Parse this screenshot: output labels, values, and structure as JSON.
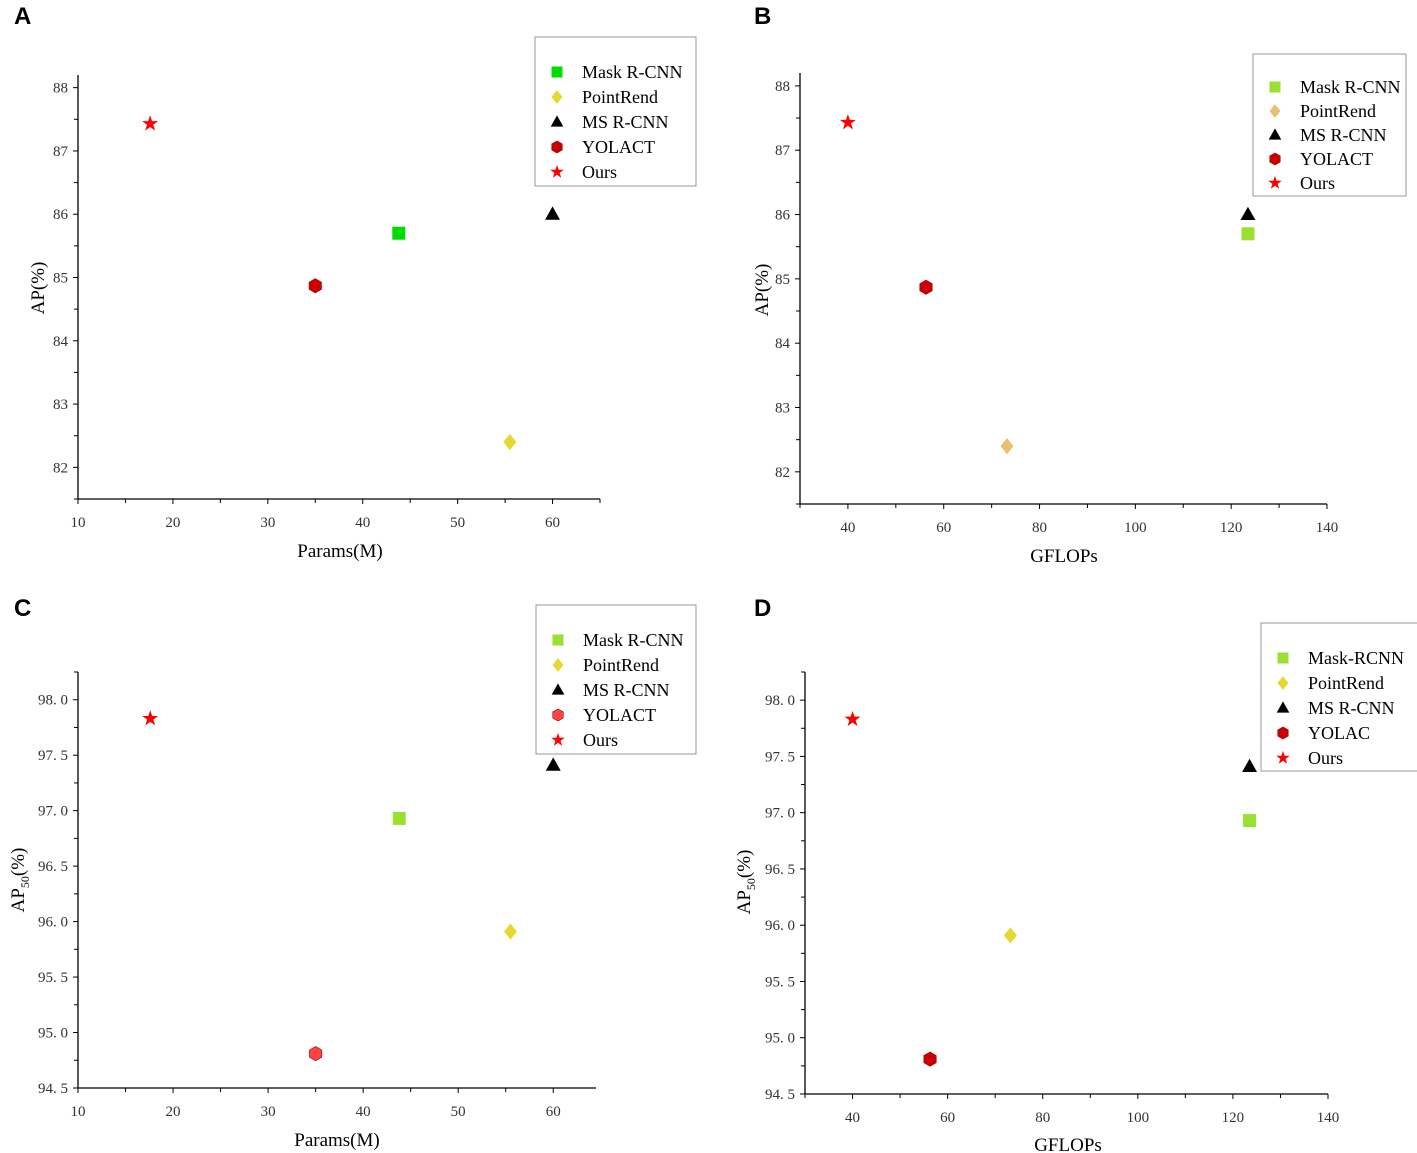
{
  "chart_data": [
    {
      "panel": "A",
      "type": "scatter",
      "xlabel": "Params(M)",
      "ylabel": "AP(%)",
      "xlim": [
        10,
        65
      ],
      "ylim": [
        81.5,
        88.2
      ],
      "xticks": [
        "10",
        "20",
        "30",
        "40",
        "50",
        "60"
      ],
      "xtick_values": [
        10,
        20,
        30,
        40,
        50,
        60
      ],
      "yticks": [
        "82",
        "83",
        "84",
        "85",
        "86",
        "87",
        "88"
      ],
      "ytick_values": [
        82,
        83,
        84,
        85,
        86,
        87,
        88
      ],
      "legend_position": "top-right",
      "series": [
        {
          "name": "Mask R-CNN",
          "marker": "square",
          "color": "#00dd00",
          "x": 43.8,
          "y": 85.7
        },
        {
          "name": "PointRend",
          "marker": "diamond",
          "color": "#e6d830",
          "x": 55.5,
          "y": 82.4
        },
        {
          "name": "MS R-CNN",
          "marker": "triangle",
          "color": "#000000",
          "x": 60,
          "y": 86.0
        },
        {
          "name": "YOLACT",
          "marker": "hexagon",
          "color": "#cc0000",
          "x": 35,
          "y": 84.87
        },
        {
          "name": "Ours",
          "marker": "star",
          "color": "#ff0000",
          "x": 17.6,
          "y": 87.43
        }
      ]
    },
    {
      "panel": "B",
      "type": "scatter",
      "xlabel": "GFLOPs",
      "ylabel": "AP(%)",
      "xlim": [
        30,
        140
      ],
      "ylim": [
        81.5,
        88.2
      ],
      "xticks": [
        "40",
        "60",
        "80",
        "100",
        "120",
        "140"
      ],
      "xtick_values": [
        40,
        60,
        80,
        100,
        120,
        140
      ],
      "yticks": [
        "82",
        "83",
        "84",
        "85",
        "86",
        "87",
        "88"
      ],
      "ytick_values": [
        82,
        83,
        84,
        85,
        86,
        87,
        88
      ],
      "legend_position": "top-right",
      "series": [
        {
          "name": "Mask R-CNN",
          "marker": "square",
          "color": "#99e033",
          "x": 123.5,
          "y": 85.7
        },
        {
          "name": "PointRend",
          "marker": "diamond",
          "color": "#e8c070",
          "x": 73.2,
          "y": 82.4
        },
        {
          "name": "MS R-CNN",
          "marker": "triangle",
          "color": "#000000",
          "x": 123.5,
          "y": 86.0
        },
        {
          "name": "YOLACT",
          "marker": "hexagon",
          "color": "#cc0000",
          "x": 56.3,
          "y": 84.87
        },
        {
          "name": "Ours",
          "marker": "star",
          "color": "#ff0000",
          "x": 40,
          "y": 87.43
        }
      ]
    },
    {
      "panel": "C",
      "type": "scatter",
      "xlabel": "Params(M)",
      "ylabel": "AP",
      "ylabel_sub": "50",
      "ylabel_suffix": "(%)",
      "xlim": [
        10,
        64.5
      ],
      "ylim": [
        94.5,
        98.25
      ],
      "xticks": [
        "10",
        "20",
        "30",
        "40",
        "50",
        "60"
      ],
      "xtick_values": [
        10,
        20,
        30,
        40,
        50,
        60
      ],
      "yticks": [
        "94. 5",
        "95. 0",
        "95. 5",
        "96. 0",
        "96. 5",
        "97. 0",
        "97. 5",
        "98. 0"
      ],
      "ytick_values": [
        94.5,
        95,
        95.5,
        96,
        96.5,
        97,
        97.5,
        98
      ],
      "legend_position": "top-right",
      "series": [
        {
          "name": "Mask R-CNN",
          "marker": "square",
          "color": "#99e033",
          "x": 43.8,
          "y": 96.93
        },
        {
          "name": "PointRend",
          "marker": "diamond",
          "color": "#e6d830",
          "x": 55.5,
          "y": 95.91
        },
        {
          "name": "MS R-CNN",
          "marker": "triangle",
          "color": "#000000",
          "x": 60,
          "y": 97.41
        },
        {
          "name": "YOLACT",
          "marker": "hexagon",
          "color": "#ff4444",
          "x": 35,
          "y": 94.81
        },
        {
          "name": "Ours",
          "marker": "star",
          "color": "#ff0000",
          "x": 17.6,
          "y": 97.83
        }
      ]
    },
    {
      "panel": "D",
      "type": "scatter",
      "xlabel": "GFLOPs",
      "ylabel": "AP",
      "ylabel_sub": "50",
      "ylabel_suffix": "(%)",
      "xlim": [
        30,
        140
      ],
      "ylim": [
        94.5,
        98.25
      ],
      "xticks": [
        "40",
        "60",
        "80",
        "100",
        "120",
        "140"
      ],
      "xtick_values": [
        40,
        60,
        80,
        100,
        120,
        140
      ],
      "yticks": [
        "94. 5",
        "95. 0",
        "95. 5",
        "96. 0",
        "96. 5",
        "97. 0",
        "97. 5",
        "98. 0"
      ],
      "ytick_values": [
        94.5,
        95,
        95.5,
        96,
        96.5,
        97,
        97.5,
        98
      ],
      "legend_position": "top-right",
      "series": [
        {
          "name": "Mask-RCNN",
          "marker": "square",
          "color": "#99e033",
          "x": 123.5,
          "y": 96.93
        },
        {
          "name": "PointRend",
          "marker": "diamond",
          "color": "#e6d830",
          "x": 73.2,
          "y": 95.91
        },
        {
          "name": "MS R-CNN",
          "marker": "triangle",
          "color": "#000000",
          "x": 123.5,
          "y": 97.41
        },
        {
          "name": "YOLAC",
          "marker": "hexagon",
          "color": "#cc0000",
          "x": 56.3,
          "y": 94.81
        },
        {
          "name": "Ours",
          "marker": "star",
          "color": "#ff0000",
          "x": 40,
          "y": 97.83
        }
      ]
    }
  ]
}
